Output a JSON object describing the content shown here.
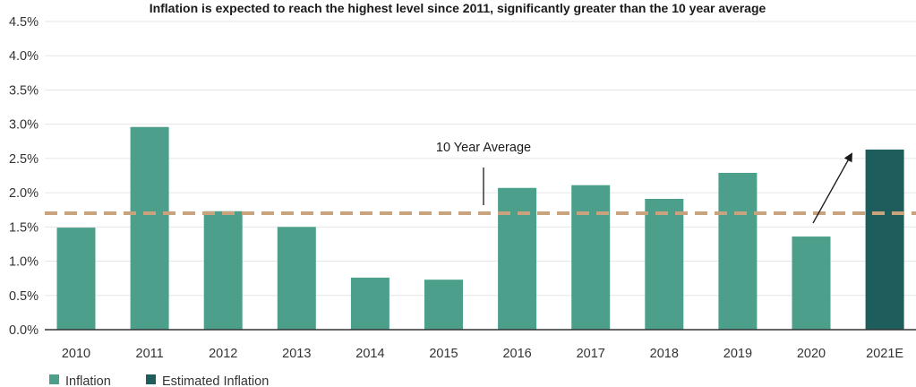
{
  "chart_data": {
    "type": "bar",
    "title": "Inflation is expected to reach the highest level since 2011, significantly greater than the 10 year average",
    "xlabel": "",
    "ylabel": "",
    "categories": [
      "2010",
      "2011",
      "2012",
      "2013",
      "2014",
      "2015",
      "2016",
      "2017",
      "2018",
      "2019",
      "2020",
      "2021E"
    ],
    "values": [
      1.49,
      2.96,
      1.73,
      1.5,
      0.76,
      0.73,
      2.07,
      2.11,
      1.91,
      2.29,
      1.36,
      2.63
    ],
    "estimated": [
      false,
      false,
      false,
      false,
      false,
      false,
      false,
      false,
      false,
      false,
      false,
      true
    ],
    "ylim": [
      0,
      4.5
    ],
    "y_ticks": [
      0,
      0.5,
      1.0,
      1.5,
      2.0,
      2.5,
      3.0,
      3.5,
      4.0,
      4.5
    ],
    "y_tick_labels": [
      "0.0%",
      "0.5%",
      "1.0%",
      "1.5%",
      "2.0%",
      "2.5%",
      "3.0%",
      "3.5%",
      "4.0%",
      "4.5%"
    ],
    "grid": true,
    "reference_line": {
      "label": "10 Year Average",
      "value": 1.7,
      "color": "#C9A27E",
      "style": "dashed"
    },
    "arrow_annotation": {
      "from_category": "2020",
      "to_category": "2021E"
    },
    "legend": {
      "position": "bottom-left",
      "items": [
        {
          "label": "Inflation",
          "color": "#4C9F8A"
        },
        {
          "label": "Estimated Inflation",
          "color": "#1D5E5C"
        }
      ]
    },
    "colors": {
      "bar": "#4C9F8A",
      "bar_estimated": "#1D5E5C",
      "grid": "#E6E6E6",
      "axis": "#333333"
    }
  }
}
